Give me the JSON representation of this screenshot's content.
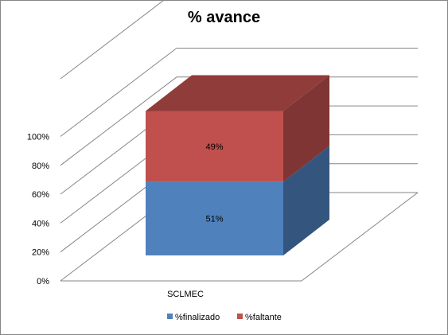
{
  "chart_data": {
    "type": "bar",
    "variant": "3d-stacked-100",
    "title": "% avance",
    "categories": [
      "SCLMEC"
    ],
    "series": [
      {
        "name": "%finalizado",
        "values": [
          51
        ],
        "color": "#4F81BD"
      },
      {
        "name": "%faltante",
        "values": [
          49
        ],
        "color": "#C0504D"
      }
    ],
    "data_labels": [
      "51%",
      "49%"
    ],
    "y_ticks": [
      "0%",
      "20%",
      "40%",
      "60%",
      "80%",
      "100%"
    ],
    "ylim": [
      0,
      100
    ],
    "grid": true,
    "legend_position": "bottom",
    "xlabel": "",
    "ylabel": ""
  }
}
